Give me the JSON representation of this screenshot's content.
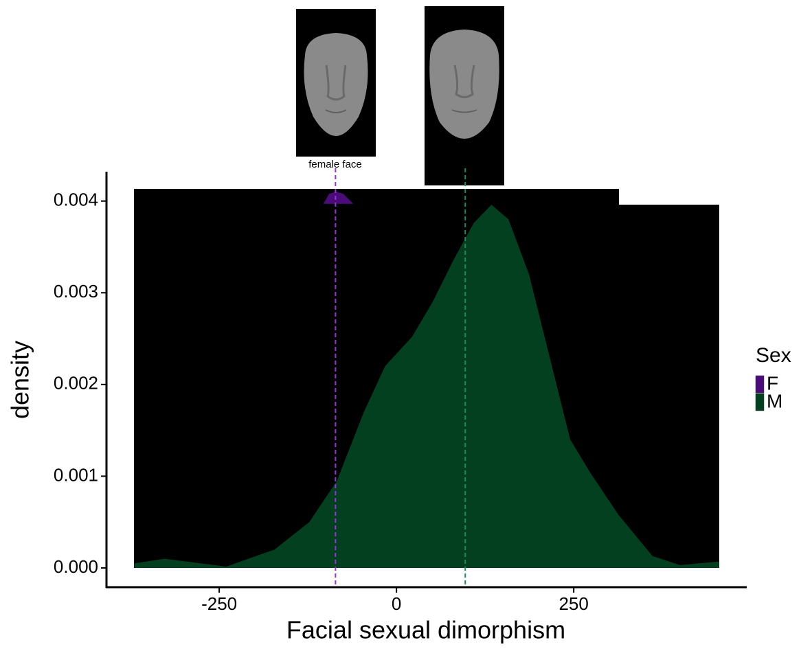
{
  "chart_data": {
    "type": "density",
    "xlabel": "Facial sexual dimorphism",
    "ylabel": "density",
    "xlim": [
      -409,
      494
    ],
    "ylim": [
      -0.00021,
      0.00432
    ],
    "xticks": [
      -250,
      0,
      250
    ],
    "yticks": [
      {
        "value": 0,
        "label": "0.000"
      },
      {
        "value": 0.001,
        "label": "0.001"
      },
      {
        "value": 0.002,
        "label": "0.002"
      },
      {
        "value": 0.003,
        "label": "0.003"
      },
      {
        "value": 0.004,
        "label": "0.004"
      }
    ],
    "legend_title": "Sex",
    "image_label": "female face",
    "series": [
      {
        "name": "F",
        "color": "#4b0c7a",
        "line_color": "#9b30e0",
        "mean": -86,
        "x": [
          -103,
          -95,
          -85,
          -75,
          -61
        ],
        "values": [
          0.00397,
          0.00408,
          0.0041,
          0.00408,
          0.00397
        ]
      },
      {
        "name": "M",
        "color": "#03401f",
        "line_color": "#1f8a5a",
        "mean": 97,
        "x": [
          -370,
          -327,
          -240,
          -172,
          -123,
          -84,
          -46,
          -16,
          22,
          51,
          80,
          109,
          134,
          158,
          187,
          216,
          245,
          274,
          313,
          361,
          400,
          455
        ],
        "values": [
          5e-05,
          0.0001,
          1.5e-05,
          0.0002,
          0.0005,
          0.00095,
          0.0017,
          0.0022,
          0.00252,
          0.0029,
          0.00335,
          0.00376,
          0.00396,
          0.0038,
          0.0032,
          0.0023,
          0.0014,
          0.00103,
          0.00058,
          0.00013,
          3e-05,
          7e-05
        ]
      }
    ]
  }
}
